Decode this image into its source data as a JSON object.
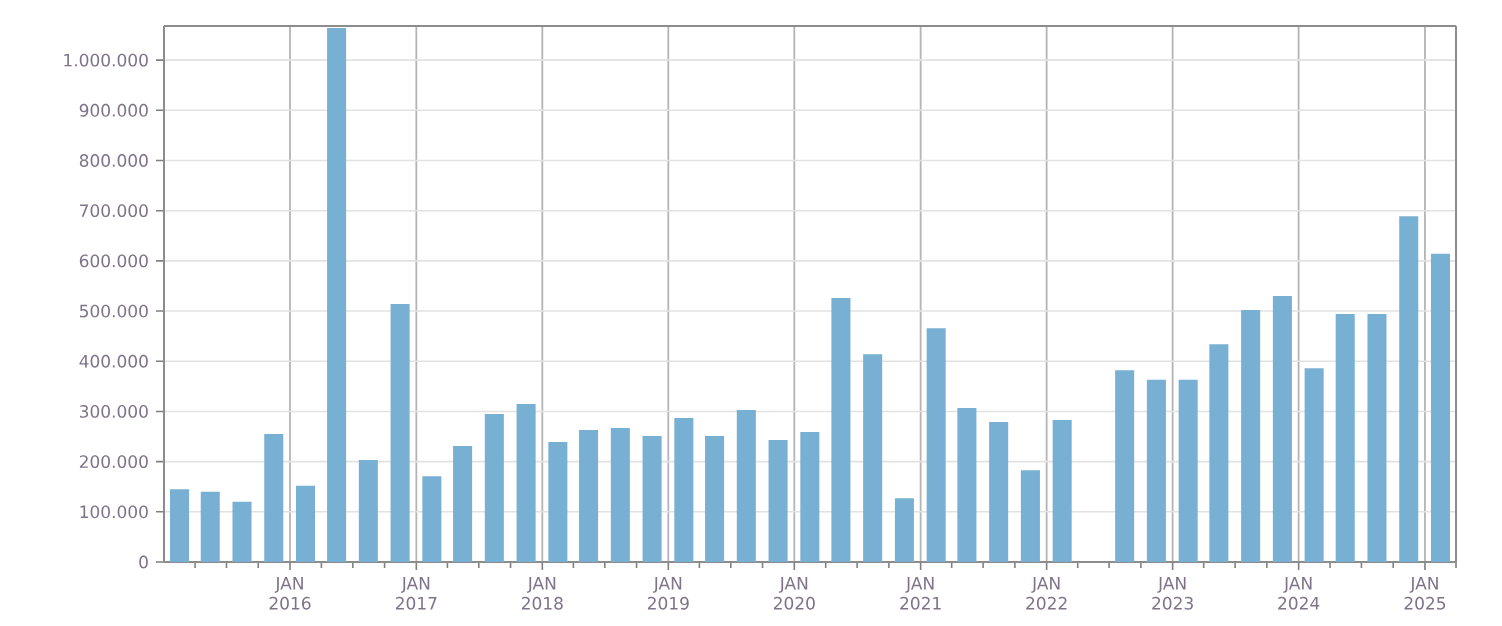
{
  "chart_data": {
    "type": "bar",
    "x": [
      "2015-02-15",
      "2015-05-15",
      "2015-08-15",
      "2015-11-15",
      "2016-02-15",
      "2016-05-15",
      "2016-08-15",
      "2016-11-15",
      "2017-02-15",
      "2017-05-15",
      "2017-08-15",
      "2017-11-15",
      "2018-02-15",
      "2018-05-15",
      "2018-08-15",
      "2018-11-15",
      "2019-02-15",
      "2019-05-15",
      "2019-08-15",
      "2019-11-15",
      "2020-02-15",
      "2020-05-15",
      "2020-08-15",
      "2020-11-15",
      "2021-02-15",
      "2021-05-15",
      "2021-08-15",
      "2021-11-15",
      "2022-02-15",
      "2022-05-15",
      "2022-08-15",
      "2022-11-15",
      "2023-02-15",
      "2023-05-15",
      "2023-08-15",
      "2023-11-15",
      "2024-02-15",
      "2024-05-15",
      "2024-08-15",
      "2024-11-15",
      "2025-02-15"
    ],
    "values": [
      145000,
      140000,
      120000,
      255000,
      152000,
      1064000,
      203000,
      514000,
      171000,
      231000,
      295000,
      315000,
      239000,
      263000,
      267000,
      251000,
      287000,
      251000,
      303000,
      243000,
      259000,
      526000,
      414000,
      127000,
      466000,
      307000,
      279000,
      183000,
      283000,
      null,
      382000,
      363000,
      363000,
      434000,
      502000,
      530000,
      386000,
      494000,
      494000,
      689000,
      614000
    ],
    "color": "#78b0d3",
    "xlim": [
      "2015-01-01",
      "2025-04-01"
    ],
    "xticks": [
      {
        "value": "2015-04-01",
        "label": null
      },
      {
        "value": "2015-07-01",
        "label": null
      },
      {
        "value": "2015-10-01",
        "label": null
      },
      {
        "value": "2016-01-01",
        "label": "JAN 2016"
      },
      {
        "value": "2016-04-01",
        "label": null
      },
      {
        "value": "2016-07-01",
        "label": null
      },
      {
        "value": "2016-10-01",
        "label": null
      },
      {
        "value": "2017-01-01",
        "label": "JAN 2017"
      },
      {
        "value": "2017-04-01",
        "label": null
      },
      {
        "value": "2017-07-01",
        "label": null
      },
      {
        "value": "2017-10-01",
        "label": null
      },
      {
        "value": "2018-01-01",
        "label": "JAN 2018"
      },
      {
        "value": "2018-04-01",
        "label": null
      },
      {
        "value": "2018-07-01",
        "label": null
      },
      {
        "value": "2018-10-01",
        "label": null
      },
      {
        "value": "2019-01-01",
        "label": "JAN 2019"
      },
      {
        "value": "2019-04-01",
        "label": null
      },
      {
        "value": "2019-07-01",
        "label": null
      },
      {
        "value": "2019-10-01",
        "label": null
      },
      {
        "value": "2020-01-01",
        "label": "JAN 2020"
      },
      {
        "value": "2020-04-01",
        "label": null
      },
      {
        "value": "2020-07-01",
        "label": null
      },
      {
        "value": "2020-10-01",
        "label": null
      },
      {
        "value": "2021-01-01",
        "label": "JAN 2021"
      },
      {
        "value": "2021-04-01",
        "label": null
      },
      {
        "value": "2021-07-01",
        "label": null
      },
      {
        "value": "2021-10-01",
        "label": null
      },
      {
        "value": "2022-01-01",
        "label": "JAN 2022"
      },
      {
        "value": "2022-04-01",
        "label": null
      },
      {
        "value": "2022-07-01",
        "label": null
      },
      {
        "value": "2022-10-01",
        "label": null
      },
      {
        "value": "2023-01-01",
        "label": "JAN 2023"
      },
      {
        "value": "2023-04-01",
        "label": null
      },
      {
        "value": "2023-07-01",
        "label": null
      },
      {
        "value": "2023-10-01",
        "label": null
      },
      {
        "value": "2024-01-01",
        "label": "JAN 2024"
      },
      {
        "value": "2024-04-01",
        "label": null
      },
      {
        "value": "2024-07-01",
        "label": null
      },
      {
        "value": "2024-10-01",
        "label": null
      },
      {
        "value": "2025-01-01",
        "label": "JAN 2025"
      },
      {
        "value": "2025-04-01",
        "label": null
      }
    ],
    "ylim": [
      0,
      1068000
    ],
    "yticks": [
      0,
      {
        "value": 100000,
        "label": "100.000"
      },
      {
        "value": 200000,
        "label": "200.000"
      },
      {
        "value": 300000,
        "label": "300.000"
      },
      {
        "value": 400000,
        "label": "400.000"
      },
      {
        "value": 500000,
        "label": "500.000"
      },
      {
        "value": 600000,
        "label": "600.000"
      },
      {
        "value": 700000,
        "label": "700.000"
      },
      {
        "value": 800000,
        "label": "800.000"
      },
      {
        "value": 900000,
        "label": "900.000"
      },
      {
        "value": 1000000,
        "label": "1.000.000"
      }
    ],
    "grid": true
  }
}
